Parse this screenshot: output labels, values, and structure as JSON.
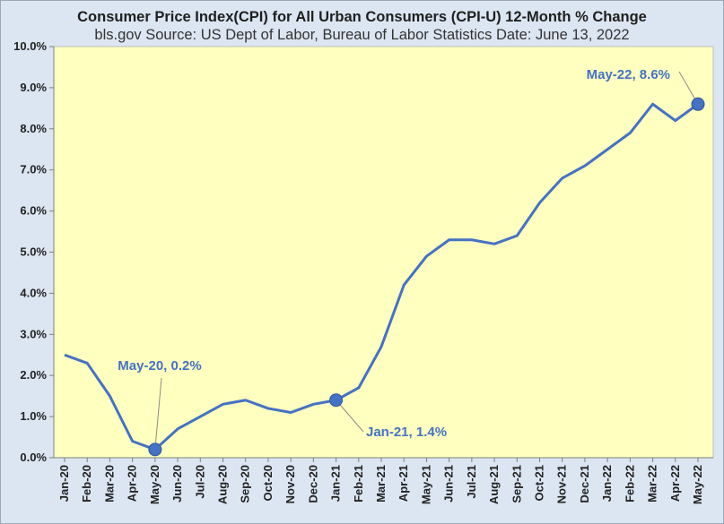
{
  "chart_data": {
    "type": "line",
    "title": "Consumer Price Index(CPI) for All Urban Consumers (CPI-U) 12-Month % Change",
    "subtitle": "bls.gov  Source: US Dept of Labor, Bureau of Labor Statistics Date: June 13, 2022",
    "categories": [
      "Jan-20",
      "Feb-20",
      "Mar-20",
      "Apr-20",
      "May-20",
      "Jun-20",
      "Jul-20",
      "Aug-20",
      "Sep-20",
      "Oct-20",
      "Nov-20",
      "Dec-20",
      "Jan-21",
      "Feb-21",
      "Mar-21",
      "Apr-21",
      "May-21",
      "Jun-21",
      "Jul-21",
      "Aug-21",
      "Sep-21",
      "Oct-21",
      "Nov-21",
      "Dec-21",
      "Jan-22",
      "Feb-22",
      "Mar-22",
      "Apr-22",
      "May-22"
    ],
    "series": [
      {
        "values": [
          2.5,
          2.3,
          1.5,
          0.4,
          0.2,
          0.7,
          1.0,
          1.3,
          1.4,
          1.2,
          1.1,
          1.3,
          1.4,
          1.7,
          2.7,
          4.2,
          4.9,
          5.3,
          5.3,
          5.2,
          5.4,
          6.2,
          6.8,
          7.1,
          7.5,
          7.9,
          8.6,
          8.2,
          8.6
        ]
      }
    ],
    "yticks": [
      "0.0%",
      "1.0%",
      "2.0%",
      "3.0%",
      "4.0%",
      "5.0%",
      "6.0%",
      "7.0%",
      "8.0%",
      "9.0%",
      "10.0%"
    ],
    "ylim": [
      0,
      10
    ],
    "grid": false,
    "colors": {
      "line": "#4472C4",
      "plot_bg": "#FFFFBF",
      "page_bg": "#DCE6F2"
    },
    "annotations": [
      {
        "index": 4,
        "label": "May-20, 0.2%"
      },
      {
        "index": 12,
        "label": "Jan-21, 1.4%"
      },
      {
        "index": 28,
        "label": "May-22, 8.6%"
      }
    ]
  }
}
